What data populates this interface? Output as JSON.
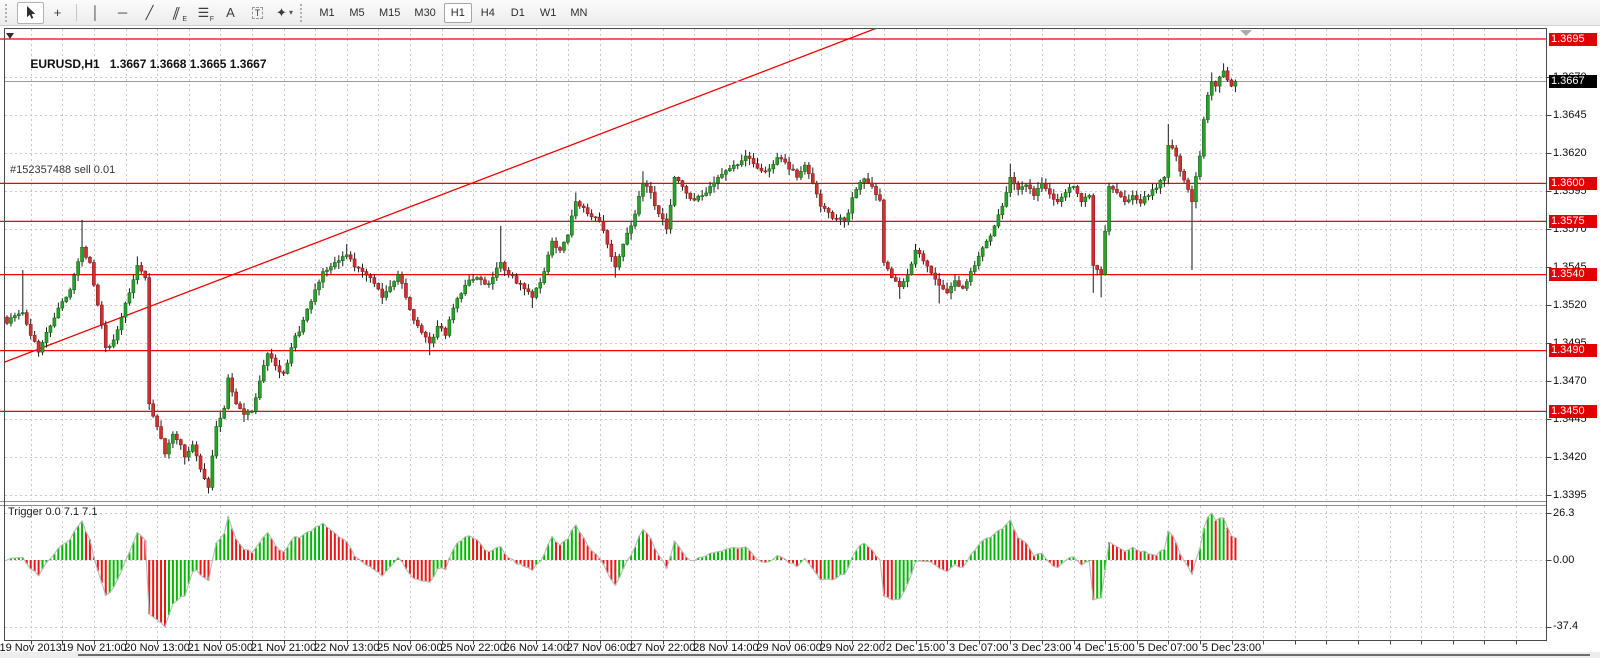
{
  "toolbar": {
    "items": [
      {
        "type": "gripper"
      },
      {
        "type": "tool",
        "icon": "cursor-arrow-icon",
        "glyph": "",
        "active": true
      },
      {
        "type": "tool",
        "icon": "crosshair-icon",
        "glyph": "+"
      },
      {
        "type": "separator"
      },
      {
        "type": "tool",
        "icon": "vertical-line-icon",
        "glyph": "│"
      },
      {
        "type": "tool",
        "icon": "horizontal-line-icon",
        "glyph": "─"
      },
      {
        "type": "tool",
        "icon": "trendline-icon",
        "glyph": "╱"
      },
      {
        "type": "tool",
        "icon": "equidistant-channel-icon",
        "glyph": "∥",
        "badge": "E",
        "slant": true
      },
      {
        "type": "tool",
        "icon": "fibonacci-icon",
        "glyph": "☰",
        "badge": "F"
      },
      {
        "type": "tool",
        "icon": "text-icon",
        "glyph": "A"
      },
      {
        "type": "tool",
        "icon": "text-label-icon",
        "glyph": "T",
        "boxed": true
      },
      {
        "type": "tool",
        "icon": "arrows-shapes-icon",
        "glyph": "✦",
        "dropdown": "▾"
      },
      {
        "type": "gripper"
      },
      {
        "type": "timeframe",
        "label": "M1"
      },
      {
        "type": "timeframe",
        "label": "M5"
      },
      {
        "type": "timeframe",
        "label": "M15"
      },
      {
        "type": "timeframe",
        "label": "M30"
      },
      {
        "type": "timeframe",
        "label": "H1",
        "active": true
      },
      {
        "type": "timeframe",
        "label": "H4"
      },
      {
        "type": "timeframe",
        "label": "D1"
      },
      {
        "type": "timeframe",
        "label": "W1"
      },
      {
        "type": "timeframe",
        "label": "MN"
      }
    ]
  },
  "chart": {
    "symbol_title": "EURUSD,H1   1.3667 1.3668 1.3665 1.3667",
    "order_label": "#152357488 sell 0.01",
    "indicator_label": "Trigger 0.0 7.1 7.1"
  },
  "price_axis": {
    "grid_labels": [
      "1.3670",
      "1.3645",
      "1.3620",
      "1.3595",
      "1.3570",
      "1.3545",
      "1.3520",
      "1.3495",
      "1.3470",
      "1.3445",
      "1.3420",
      "1.3395"
    ],
    "level_tags": [
      "1.3695",
      "1.3600",
      "1.3575",
      "1.3540",
      "1.3490",
      "1.3450"
    ],
    "current_tag": "1.3667",
    "indicator_labels": [
      {
        "text": "26.3",
        "value": 26.3
      },
      {
        "text": "0.00",
        "value": 0
      },
      {
        "text": "-37.4",
        "value": -37.4
      }
    ]
  },
  "time_axis": {
    "labels": [
      "19 Nov 2013",
      "19 Nov 21:00",
      "20 Nov 13:00",
      "21 Nov 05:00",
      "21 Nov 21:00",
      "22 Nov 13:00",
      "25 Nov 06:00",
      "25 Nov 22:00",
      "26 Nov 14:00",
      "27 Nov 06:00",
      "27 Nov 22:00",
      "28 Nov 14:00",
      "29 Nov 06:00",
      "29 Nov 22:00",
      "2 Dec 15:00",
      "3 Dec 07:00",
      "3 Dec 23:00",
      "4 Dec 15:00",
      "5 Dec 07:00",
      "5 Dec 23:00"
    ]
  },
  "chart_data": {
    "type": "candlestick",
    "symbol": "EURUSD",
    "timeframe": "H1",
    "title": "EURUSD,H1",
    "current_price": 1.3667,
    "ylim": [
      1.339,
      1.3702
    ],
    "grid": true,
    "num_candles": 312,
    "first_label_candle": 6,
    "candles_per_label": 16,
    "grid_every_candles": 8,
    "price_gridlines": [
      1.367,
      1.3645,
      1.362,
      1.3595,
      1.357,
      1.3545,
      1.352,
      1.3495,
      1.347,
      1.3445,
      1.342,
      1.3395
    ],
    "red_levels": [
      1.3695,
      1.36,
      1.3575,
      1.354,
      1.349,
      1.345
    ],
    "trendline": {
      "i1": 0,
      "p1": 1.3482,
      "i2": 220,
      "p2": 1.3702
    },
    "close_waypoints": [
      [
        0,
        1.3508
      ],
      [
        2,
        1.3513
      ],
      [
        4,
        1.3515
      ],
      [
        6,
        1.35
      ],
      [
        8,
        1.3489
      ],
      [
        10,
        1.3502
      ],
      [
        13,
        1.3518
      ],
      [
        16,
        1.353
      ],
      [
        19,
        1.3558
      ],
      [
        21,
        1.3548
      ],
      [
        23,
        1.352
      ],
      [
        25,
        1.3492
      ],
      [
        27,
        1.3497
      ],
      [
        29,
        1.3512
      ],
      [
        31,
        1.3528
      ],
      [
        33,
        1.3546
      ],
      [
        35,
        1.3538
      ],
      [
        36,
        1.3455
      ],
      [
        38,
        1.344
      ],
      [
        40,
        1.3422
      ],
      [
        42,
        1.3435
      ],
      [
        44,
        1.3428
      ],
      [
        45,
        1.342
      ],
      [
        47,
        1.3428
      ],
      [
        49,
        1.3412
      ],
      [
        51,
        1.34
      ],
      [
        53,
        1.344
      ],
      [
        55,
        1.3452
      ],
      [
        56,
        1.3472
      ],
      [
        58,
        1.3455
      ],
      [
        60,
        1.3448
      ],
      [
        62,
        1.345
      ],
      [
        64,
        1.347
      ],
      [
        66,
        1.3488
      ],
      [
        68,
        1.348
      ],
      [
        70,
        1.3475
      ],
      [
        72,
        1.3492
      ],
      [
        75,
        1.351
      ],
      [
        78,
        1.353
      ],
      [
        80,
        1.3542
      ],
      [
        83,
        1.3548
      ],
      [
        86,
        1.3553
      ],
      [
        88,
        1.3545
      ],
      [
        90,
        1.3542
      ],
      [
        92,
        1.3538
      ],
      [
        95,
        1.3525
      ],
      [
        97,
        1.3532
      ],
      [
        99,
        1.354
      ],
      [
        101,
        1.3525
      ],
      [
        103,
        1.351
      ],
      [
        105,
        1.3502
      ],
      [
        107,
        1.3495
      ],
      [
        109,
        1.3506
      ],
      [
        111,
        1.35
      ],
      [
        113,
        1.3518
      ],
      [
        116,
        1.3533
      ],
      [
        119,
        1.3538
      ],
      [
        122,
        1.3534
      ],
      [
        125,
        1.3548
      ],
      [
        127,
        1.354
      ],
      [
        130,
        1.3534
      ],
      [
        133,
        1.3525
      ],
      [
        136,
        1.3542
      ],
      [
        138,
        1.3562
      ],
      [
        140,
        1.3556
      ],
      [
        142,
        1.3566
      ],
      [
        144,
        1.3588
      ],
      [
        146,
        1.3584
      ],
      [
        148,
        1.3578
      ],
      [
        150,
        1.3575
      ],
      [
        152,
        1.356
      ],
      [
        154,
        1.3545
      ],
      [
        156,
        1.356
      ],
      [
        158,
        1.3572
      ],
      [
        161,
        1.36
      ],
      [
        163,
        1.3594
      ],
      [
        165,
        1.358
      ],
      [
        167,
        1.357
      ],
      [
        169,
        1.3604
      ],
      [
        171,
        1.3598
      ],
      [
        173,
        1.359
      ],
      [
        176,
        1.3592
      ],
      [
        178,
        1.3598
      ],
      [
        181,
        1.3606
      ],
      [
        184,
        1.3612
      ],
      [
        187,
        1.3618
      ],
      [
        189,
        1.3613
      ],
      [
        192,
        1.3608
      ],
      [
        195,
        1.3617
      ],
      [
        197,
        1.3614
      ],
      [
        200,
        1.3604
      ],
      [
        202,
        1.3612
      ],
      [
        204,
        1.36
      ],
      [
        206,
        1.3585
      ],
      [
        209,
        1.3577
      ],
      [
        212,
        1.3575
      ],
      [
        215,
        1.3596
      ],
      [
        217,
        1.3603
      ],
      [
        219,
        1.3598
      ],
      [
        221,
        1.3589
      ],
      [
        222,
        1.3548
      ],
      [
        224,
        1.3538
      ],
      [
        226,
        1.3532
      ],
      [
        228,
        1.354
      ],
      [
        230,
        1.3556
      ],
      [
        232,
        1.3549
      ],
      [
        234,
        1.3541
      ],
      [
        236,
        1.3533
      ],
      [
        238,
        1.3528
      ],
      [
        240,
        1.3536
      ],
      [
        242,
        1.3531
      ],
      [
        244,
        1.3542
      ],
      [
        246,
        1.3552
      ],
      [
        248,
        1.3562
      ],
      [
        250,
        1.3572
      ],
      [
        252,
        1.3585
      ],
      [
        254,
        1.3604
      ],
      [
        256,
        1.3596
      ],
      [
        258,
        1.3599
      ],
      [
        260,
        1.3592
      ],
      [
        262,
        1.36
      ],
      [
        264,
        1.3593
      ],
      [
        266,
        1.3588
      ],
      [
        268,
        1.3594
      ],
      [
        270,
        1.3598
      ],
      [
        272,
        1.3588
      ],
      [
        274,
        1.3592
      ],
      [
        275,
        1.3546
      ],
      [
        277,
        1.354
      ],
      [
        279,
        1.3598
      ],
      [
        281,
        1.3594
      ],
      [
        283,
        1.3588
      ],
      [
        285,
        1.3592
      ],
      [
        287,
        1.3587
      ],
      [
        289,
        1.3592
      ],
      [
        291,
        1.3597
      ],
      [
        293,
        1.3604
      ],
      [
        294,
        1.3625
      ],
      [
        296,
        1.3618
      ],
      [
        297,
        1.3608
      ],
      [
        299,
        1.3596
      ],
      [
        300,
        1.3588
      ],
      [
        302,
        1.3618
      ],
      [
        303,
        1.3642
      ],
      [
        304,
        1.3658
      ],
      [
        305,
        1.3667
      ],
      [
        306,
        1.3664
      ],
      [
        307,
        1.367
      ],
      [
        308,
        1.3674
      ],
      [
        309,
        1.3668
      ],
      [
        310,
        1.3664
      ],
      [
        311,
        1.3667
      ]
    ],
    "spikes_high": [
      [
        4,
        1.3543
      ],
      [
        19,
        1.3576
      ],
      [
        33,
        1.3552
      ],
      [
        86,
        1.356
      ],
      [
        125,
        1.3572
      ],
      [
        144,
        1.3594
      ],
      [
        161,
        1.3608
      ],
      [
        187,
        1.3622
      ],
      [
        195,
        1.362
      ],
      [
        254,
        1.3613
      ],
      [
        294,
        1.3639
      ],
      [
        305,
        1.3673
      ],
      [
        308,
        1.3679
      ]
    ],
    "spikes_low": [
      [
        8,
        1.3486
      ],
      [
        25,
        1.3489
      ],
      [
        45,
        1.3415
      ],
      [
        51,
        1.3396
      ],
      [
        60,
        1.3443
      ],
      [
        107,
        1.3487
      ],
      [
        133,
        1.3518
      ],
      [
        154,
        1.3538
      ],
      [
        226,
        1.3524
      ],
      [
        236,
        1.3521
      ],
      [
        275,
        1.3528
      ],
      [
        277,
        1.3525
      ],
      [
        300,
        1.3543
      ]
    ],
    "indicator": {
      "name": "Trigger",
      "label": "Trigger 0.0 7.1 7.1",
      "max": 26.3,
      "min": -37.4,
      "zero": 0,
      "sma_period": 13
    }
  },
  "colors": {
    "bull_body": "#2aa12a",
    "bull_border": "#156815",
    "bear_body": "#d03030",
    "bear_border": "#8c1c1c",
    "wick": "#1a1a1a",
    "level_line": "#f20000",
    "trend_line": "#f20000",
    "grid": "#c9c9c9",
    "current_price_line": "#9b9b9b",
    "hist_up": "#00b800",
    "hist_down": "#f01414",
    "trigger_line": "#b9b9b9",
    "tag_red_bg": "#e00000",
    "tag_black_bg": "#000000",
    "border": "#4a4a4a"
  }
}
